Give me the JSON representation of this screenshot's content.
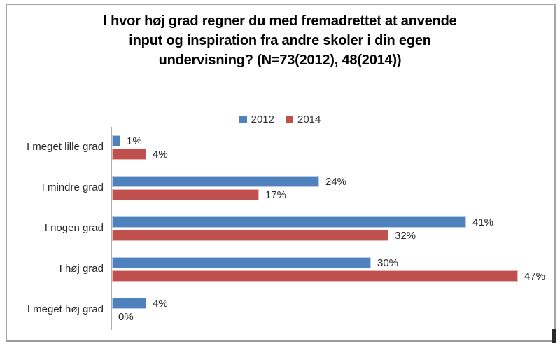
{
  "chart": {
    "title_lines": [
      "I hvor høj grad regner du med fremadrettet at anvende",
      "input og inspiration fra andre skoler i din egen",
      "undervisning? (N=73(2012), 48(2014))"
    ]
  },
  "chart_data": {
    "type": "bar",
    "orientation": "horizontal",
    "title": "I hvor høj grad regner du med fremadrettet at anvende input og inspiration fra andre skoler i din egen undervisning? (N=73(2012), 48(2014))",
    "categories": [
      "I meget lille grad",
      "I mindre grad",
      "I nogen grad",
      "I høj grad",
      "I meget høj grad"
    ],
    "series": [
      {
        "name": "2012",
        "color": "#4F81BD",
        "values": [
          1,
          24,
          41,
          30,
          4
        ],
        "value_labels": [
          "1%",
          "24%",
          "41%",
          "30%",
          "4%"
        ]
      },
      {
        "name": "2014",
        "color": "#C0504D",
        "values": [
          4,
          17,
          32,
          47,
          0
        ],
        "value_labels": [
          "4%",
          "17%",
          "32%",
          "47%",
          "0%"
        ]
      }
    ],
    "value_suffix": "%",
    "xlim": [
      0,
      50
    ],
    "grid": false,
    "legend_position": "top-center",
    "axis_color": "#ADADAD",
    "frame_border_color": "#A6A6A6"
  }
}
